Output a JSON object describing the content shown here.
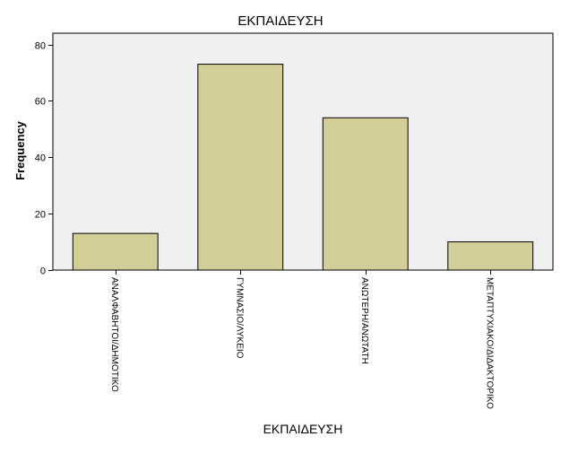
{
  "chart_data": {
    "type": "bar",
    "title": "ΕΚΠΑΙΔΕΥΣΗ",
    "xlabel": "ΕΚΠΑΙΔΕΥΣΗ",
    "ylabel": "Frequency",
    "categories": [
      "ΑΝΑΛΦΑΒΗΤΟΙ/ΔΗΜΟΤΙΚΟ",
      "ΓΥΜΝΑΣΙΟ/ΛΥΚΕΙΟ",
      "ΑΝΩΤΕΡΗ/ΑΝΩΤΑΤΗ",
      "ΜΕΤΑΠΤΥΧΙΑΚΟ/ΔΙΔΑΚΤΟΡΙΚΟ"
    ],
    "values": [
      13,
      73,
      54,
      10
    ],
    "ylim": [
      0,
      84
    ],
    "yticks": [
      0,
      20,
      40,
      60,
      80
    ],
    "grid": false,
    "colors": {
      "bar": "#d3ce97",
      "bar_stroke": "#000000",
      "plot_bg": "#f0f0f0"
    }
  }
}
